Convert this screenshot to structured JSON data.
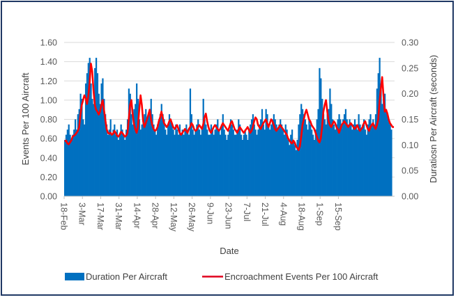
{
  "chart_data": {
    "type": "bar+line",
    "title": "",
    "xlabel": "Date",
    "ylabel_left": "Events Per 100 Aircraft",
    "ylabel_right": "Duratiosn Per Aircraft (seconds)",
    "ylim_left": [
      0,
      1.6
    ],
    "ylim_right": [
      0,
      0.3
    ],
    "yticks_left": [
      "0.00",
      "0.20",
      "0.40",
      "0.60",
      "0.80",
      "1.00",
      "1.20",
      "1.40",
      "1.60"
    ],
    "yticks_right": [
      "0.00",
      "0.05",
      "0.10",
      "0.15",
      "0.20",
      "0.25",
      "0.30"
    ],
    "xtick_labels": [
      "18-Feb",
      "3-Mar",
      "17-Mar",
      "31-Mar",
      "14-Apr",
      "28-Apr",
      "12-May",
      "26-May",
      "9-Jun",
      "23-Jun",
      "7-Jul",
      "21-Jul",
      "4-Aug",
      "18-Aug",
      "1-Sep",
      "15-Sep"
    ],
    "xtick_interval_days": 14,
    "grid": true,
    "legend_position": "bottom",
    "series": [
      {
        "name": "Duration Per Aircraft",
        "type": "bar",
        "axis": "right",
        "color": "#0070c0",
        "values": [
          0.11,
          0.12,
          0.13,
          0.14,
          0.12,
          0.11,
          0.12,
          0.13,
          0.15,
          0.13,
          0.16,
          0.17,
          0.2,
          0.19,
          0.15,
          0.14,
          0.22,
          0.24,
          0.26,
          0.27,
          0.22,
          0.19,
          0.18,
          0.25,
          0.27,
          0.24,
          0.2,
          0.18,
          0.22,
          0.23,
          0.19,
          0.16,
          0.14,
          0.12,
          0.13,
          0.15,
          0.12,
          0.13,
          0.14,
          0.12,
          0.13,
          0.11,
          0.12,
          0.14,
          0.13,
          0.12,
          0.11,
          0.13,
          0.15,
          0.21,
          0.2,
          0.16,
          0.14,
          0.17,
          0.18,
          0.22,
          0.19,
          0.15,
          0.13,
          0.14,
          0.15,
          0.16,
          0.17,
          0.15,
          0.16,
          0.17,
          0.19,
          0.16,
          0.14,
          0.13,
          0.12,
          0.14,
          0.15,
          0.16,
          0.18,
          0.16,
          0.15,
          0.13,
          0.12,
          0.14,
          0.16,
          0.15,
          0.14,
          0.13,
          0.12,
          0.14,
          0.13,
          0.12,
          0.14,
          0.12,
          0.13,
          0.12,
          0.13,
          0.14,
          0.13,
          0.12,
          0.21,
          0.16,
          0.13,
          0.12,
          0.13,
          0.14,
          0.15,
          0.13,
          0.12,
          0.13,
          0.19,
          0.15,
          0.14,
          0.13,
          0.12,
          0.12,
          0.14,
          0.13,
          0.12,
          0.13,
          0.14,
          0.15,
          0.13,
          0.12,
          0.14,
          0.16,
          0.13,
          0.12,
          0.11,
          0.12,
          0.13,
          0.15,
          0.14,
          0.13,
          0.12,
          0.12,
          0.13,
          0.15,
          0.14,
          0.12,
          0.11,
          0.12,
          0.13,
          0.12,
          0.11,
          0.13,
          0.14,
          0.15,
          0.16,
          0.14,
          0.13,
          0.12,
          0.13,
          0.14,
          0.15,
          0.17,
          0.14,
          0.13,
          0.17,
          0.16,
          0.14,
          0.13,
          0.14,
          0.15,
          0.16,
          0.15,
          0.14,
          0.13,
          0.14,
          0.15,
          0.14,
          0.13,
          0.12,
          0.14,
          0.13,
          0.11,
          0.1,
          0.12,
          0.13,
          0.11,
          0.1,
          0.09,
          0.11,
          0.14,
          0.16,
          0.18,
          0.17,
          0.16,
          0.15,
          0.14,
          0.13,
          0.15,
          0.14,
          0.13,
          0.12,
          0.11,
          0.13,
          0.15,
          0.17,
          0.25,
          0.23,
          0.19,
          0.16,
          0.15,
          0.14,
          0.16,
          0.17,
          0.21,
          0.18,
          0.15,
          0.14,
          0.13,
          0.14,
          0.15,
          0.16,
          0.15,
          0.14,
          0.15,
          0.16,
          0.17,
          0.15,
          0.14,
          0.15,
          0.14,
          0.13,
          0.14,
          0.15,
          0.14,
          0.13,
          0.16,
          0.14,
          0.13,
          0.14,
          0.15,
          0.13,
          0.12,
          0.14,
          0.15,
          0.16,
          0.14,
          0.15,
          0.14,
          0.16,
          0.21,
          0.24,
          0.27,
          0.22,
          0.18,
          0.19,
          0.2,
          0.17,
          0.16,
          0.15,
          0.14,
          0.13
        ]
      },
      {
        "name": "Encroachment Events Per 100 Aircraft",
        "type": "line",
        "axis": "left",
        "color": "#ff0000",
        "values": [
          0.57,
          0.58,
          0.55,
          0.54,
          0.56,
          0.58,
          0.62,
          0.63,
          0.64,
          0.66,
          0.68,
          0.72,
          0.85,
          0.95,
          1.0,
          1.05,
          1.02,
          0.96,
          1.04,
          1.18,
          1.38,
          1.3,
          1.1,
          0.95,
          0.9,
          0.88,
          0.85,
          0.88,
          0.95,
          1.0,
          0.9,
          0.8,
          0.7,
          0.66,
          0.65,
          0.66,
          0.64,
          0.65,
          0.68,
          0.66,
          0.63,
          0.62,
          0.64,
          0.67,
          0.66,
          0.64,
          0.62,
          0.63,
          0.66,
          0.8,
          0.95,
          1.0,
          0.85,
          0.75,
          0.7,
          0.66,
          0.72,
          0.9,
          1.05,
          0.95,
          0.78,
          0.72,
          0.76,
          0.8,
          0.85,
          0.9,
          0.8,
          0.74,
          0.7,
          0.68,
          0.69,
          0.72,
          0.78,
          0.82,
          0.88,
          0.82,
          0.76,
          0.74,
          0.72,
          0.74,
          0.78,
          0.8,
          0.76,
          0.72,
          0.7,
          0.72,
          0.74,
          0.7,
          0.66,
          0.64,
          0.66,
          0.68,
          0.7,
          0.68,
          0.66,
          0.7,
          0.72,
          0.76,
          0.74,
          0.7,
          0.68,
          0.69,
          0.72,
          0.74,
          0.72,
          0.7,
          0.75,
          0.82,
          0.86,
          0.78,
          0.72,
          0.68,
          0.66,
          0.69,
          0.72,
          0.74,
          0.72,
          0.7,
          0.68,
          0.7,
          0.73,
          0.76,
          0.74,
          0.72,
          0.7,
          0.68,
          0.72,
          0.76,
          0.78,
          0.74,
          0.7,
          0.68,
          0.66,
          0.69,
          0.72,
          0.7,
          0.68,
          0.66,
          0.68,
          0.7,
          0.72,
          0.69,
          0.66,
          0.68,
          0.72,
          0.78,
          0.82,
          0.8,
          0.74,
          0.72,
          0.7,
          0.73,
          0.76,
          0.78,
          0.8,
          0.76,
          0.72,
          0.76,
          0.8,
          0.78,
          0.74,
          0.7,
          0.68,
          0.7,
          0.72,
          0.74,
          0.72,
          0.7,
          0.68,
          0.66,
          0.64,
          0.6,
          0.58,
          0.56,
          0.55,
          0.58,
          0.56,
          0.52,
          0.5,
          0.48,
          0.52,
          0.62,
          0.74,
          0.8,
          0.86,
          0.9,
          0.85,
          0.8,
          0.78,
          0.74,
          0.72,
          0.7,
          0.66,
          0.62,
          0.58,
          0.56,
          0.6,
          0.72,
          0.88,
          0.95,
          1.0,
          0.88,
          0.78,
          0.74,
          0.72,
          0.75,
          0.78,
          0.76,
          0.72,
          0.7,
          0.66,
          0.7,
          0.74,
          0.76,
          0.78,
          0.76,
          0.74,
          0.72,
          0.74,
          0.76,
          0.74,
          0.72,
          0.7,
          0.72,
          0.74,
          0.7,
          0.68,
          0.7,
          0.72,
          0.76,
          0.78,
          0.74,
          0.7,
          0.68,
          0.72,
          0.74,
          0.76,
          0.72,
          0.7,
          0.74,
          0.8,
          0.98,
          1.12,
          1.24,
          1.05,
          0.88,
          0.9,
          0.86,
          0.8,
          0.76,
          0.74,
          0.72,
          0.72
        ]
      }
    ]
  }
}
